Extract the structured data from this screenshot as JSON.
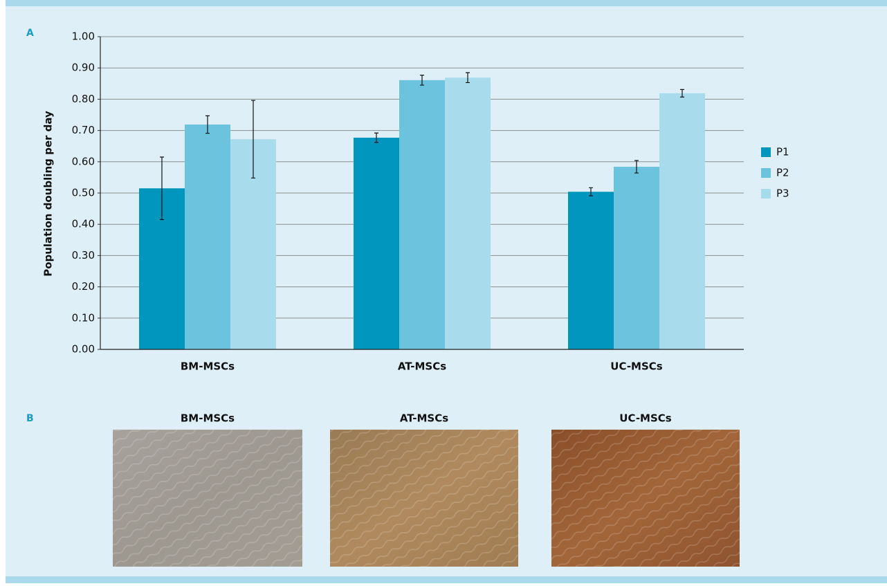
{
  "chart_data": {
    "type": "bar",
    "panel_label": "A",
    "y_label": "Population doubling per day",
    "categories": [
      "BM-MSCs",
      "AT-MSCs",
      "UC-MSCs"
    ],
    "series": [
      {
        "name": "P1",
        "color": "#0096be",
        "values": [
          0.515,
          0.677,
          0.504
        ],
        "errors": [
          0.1,
          0.015,
          0.013
        ]
      },
      {
        "name": "P2",
        "color": "#6cc3de",
        "values": [
          0.719,
          0.861,
          0.584
        ],
        "errors": [
          0.028,
          0.016,
          0.02
        ]
      },
      {
        "name": "P3",
        "color": "#a8dbeb",
        "values": [
          0.672,
          0.869,
          0.819
        ],
        "errors": [
          0.124,
          0.016,
          0.012
        ]
      }
    ],
    "ylim": [
      0,
      1
    ],
    "yticks": [
      {
        "value": 0,
        "label": "0.00"
      },
      {
        "value": 0.1,
        "label": "0.10"
      },
      {
        "value": 0.2,
        "label": "0.20"
      },
      {
        "value": 0.3,
        "label": "0.30"
      },
      {
        "value": 0.4,
        "label": "0.40"
      },
      {
        "value": 0.5,
        "label": "0.50"
      },
      {
        "value": 0.6,
        "label": "0.60"
      },
      {
        "value": 0.7,
        "label": "0.70"
      },
      {
        "value": 0.8,
        "label": "0.80"
      },
      {
        "value": 0.9,
        "label": "0.90"
      },
      {
        "value": 1,
        "label": "1.00"
      }
    ],
    "grid": true,
    "legend": "right"
  },
  "panel_b": {
    "label": "B",
    "titles": [
      "BM-MSCs",
      "AT-MSCs",
      "UC-MSCs"
    ]
  }
}
